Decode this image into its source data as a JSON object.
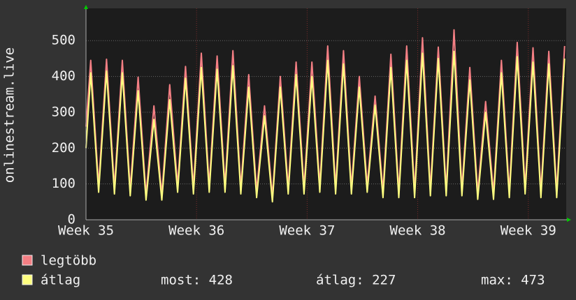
{
  "chart_data": {
    "type": "line",
    "y_label": "onlinestream.live",
    "x": [
      0,
      0.3,
      0.8,
      1.3,
      1.8,
      2.3,
      2.8,
      3.3,
      3.8,
      4.3,
      4.8,
      5.3,
      5.8,
      6.3,
      6.8,
      7.3,
      7.8,
      8.3,
      8.8,
      9.3,
      9.8,
      10.3,
      10.8,
      11.3,
      11.8,
      12.3,
      12.8,
      13.3,
      13.8,
      14.3,
      14.8,
      15.3,
      15.8,
      16.3,
      16.8,
      17.3,
      17.8,
      18.3,
      18.8,
      19.3,
      19.8,
      20.3,
      20.8,
      21.3,
      21.8,
      22.3,
      22.8,
      23.3,
      23.8,
      24.3,
      24.8,
      25.3,
      25.8,
      26.3,
      26.8,
      27.3,
      27.8,
      28.3,
      28.8,
      29.3,
      29.8,
      30.3
    ],
    "series": [
      {
        "name": "legtöbb",
        "color": "#f47f84",
        "values": [
          260,
          445,
          95,
          448,
          90,
          445,
          85,
          398,
          70,
          318,
          70,
          377,
          95,
          428,
          90,
          465,
          95,
          457,
          95,
          472,
          90,
          405,
          80,
          318,
          65,
          400,
          90,
          440,
          90,
          440,
          95,
          485,
          90,
          472,
          90,
          400,
          95,
          345,
          80,
          462,
          80,
          485,
          80,
          508,
          85,
          482,
          85,
          530,
          85,
          425,
          75,
          330,
          75,
          445,
          80,
          495,
          90,
          480,
          80,
          470,
          80,
          485
        ]
      },
      {
        "name": "átlag",
        "color": "#ffff80",
        "values": [
          200,
          410,
          77,
          415,
          72,
          410,
          67,
          360,
          55,
          280,
          55,
          335,
          77,
          395,
          72,
          425,
          77,
          420,
          77,
          430,
          72,
          370,
          62,
          290,
          50,
          370,
          72,
          405,
          72,
          400,
          77,
          445,
          72,
          435,
          72,
          370,
          77,
          320,
          62,
          425,
          62,
          445,
          62,
          465,
          67,
          450,
          67,
          470,
          67,
          390,
          57,
          300,
          57,
          410,
          62,
          455,
          72,
          440,
          62,
          435,
          62,
          450
        ]
      }
    ],
    "stats": [
      "most: 428",
      "átlag: 227",
      "max: 473"
    ],
    "xlim": [
      0,
      30.4
    ],
    "ylim": [
      0,
      590
    ],
    "yticks": [
      0,
      100,
      200,
      300,
      400,
      500
    ],
    "xticks": [
      {
        "value": 0,
        "label": "Week 35"
      },
      {
        "value": 7,
        "label": "Week 36"
      },
      {
        "value": 14,
        "label": "Week 37"
      },
      {
        "value": 21,
        "label": "Week 38"
      },
      {
        "value": 28,
        "label": "Week 39"
      }
    ],
    "grid": true
  }
}
